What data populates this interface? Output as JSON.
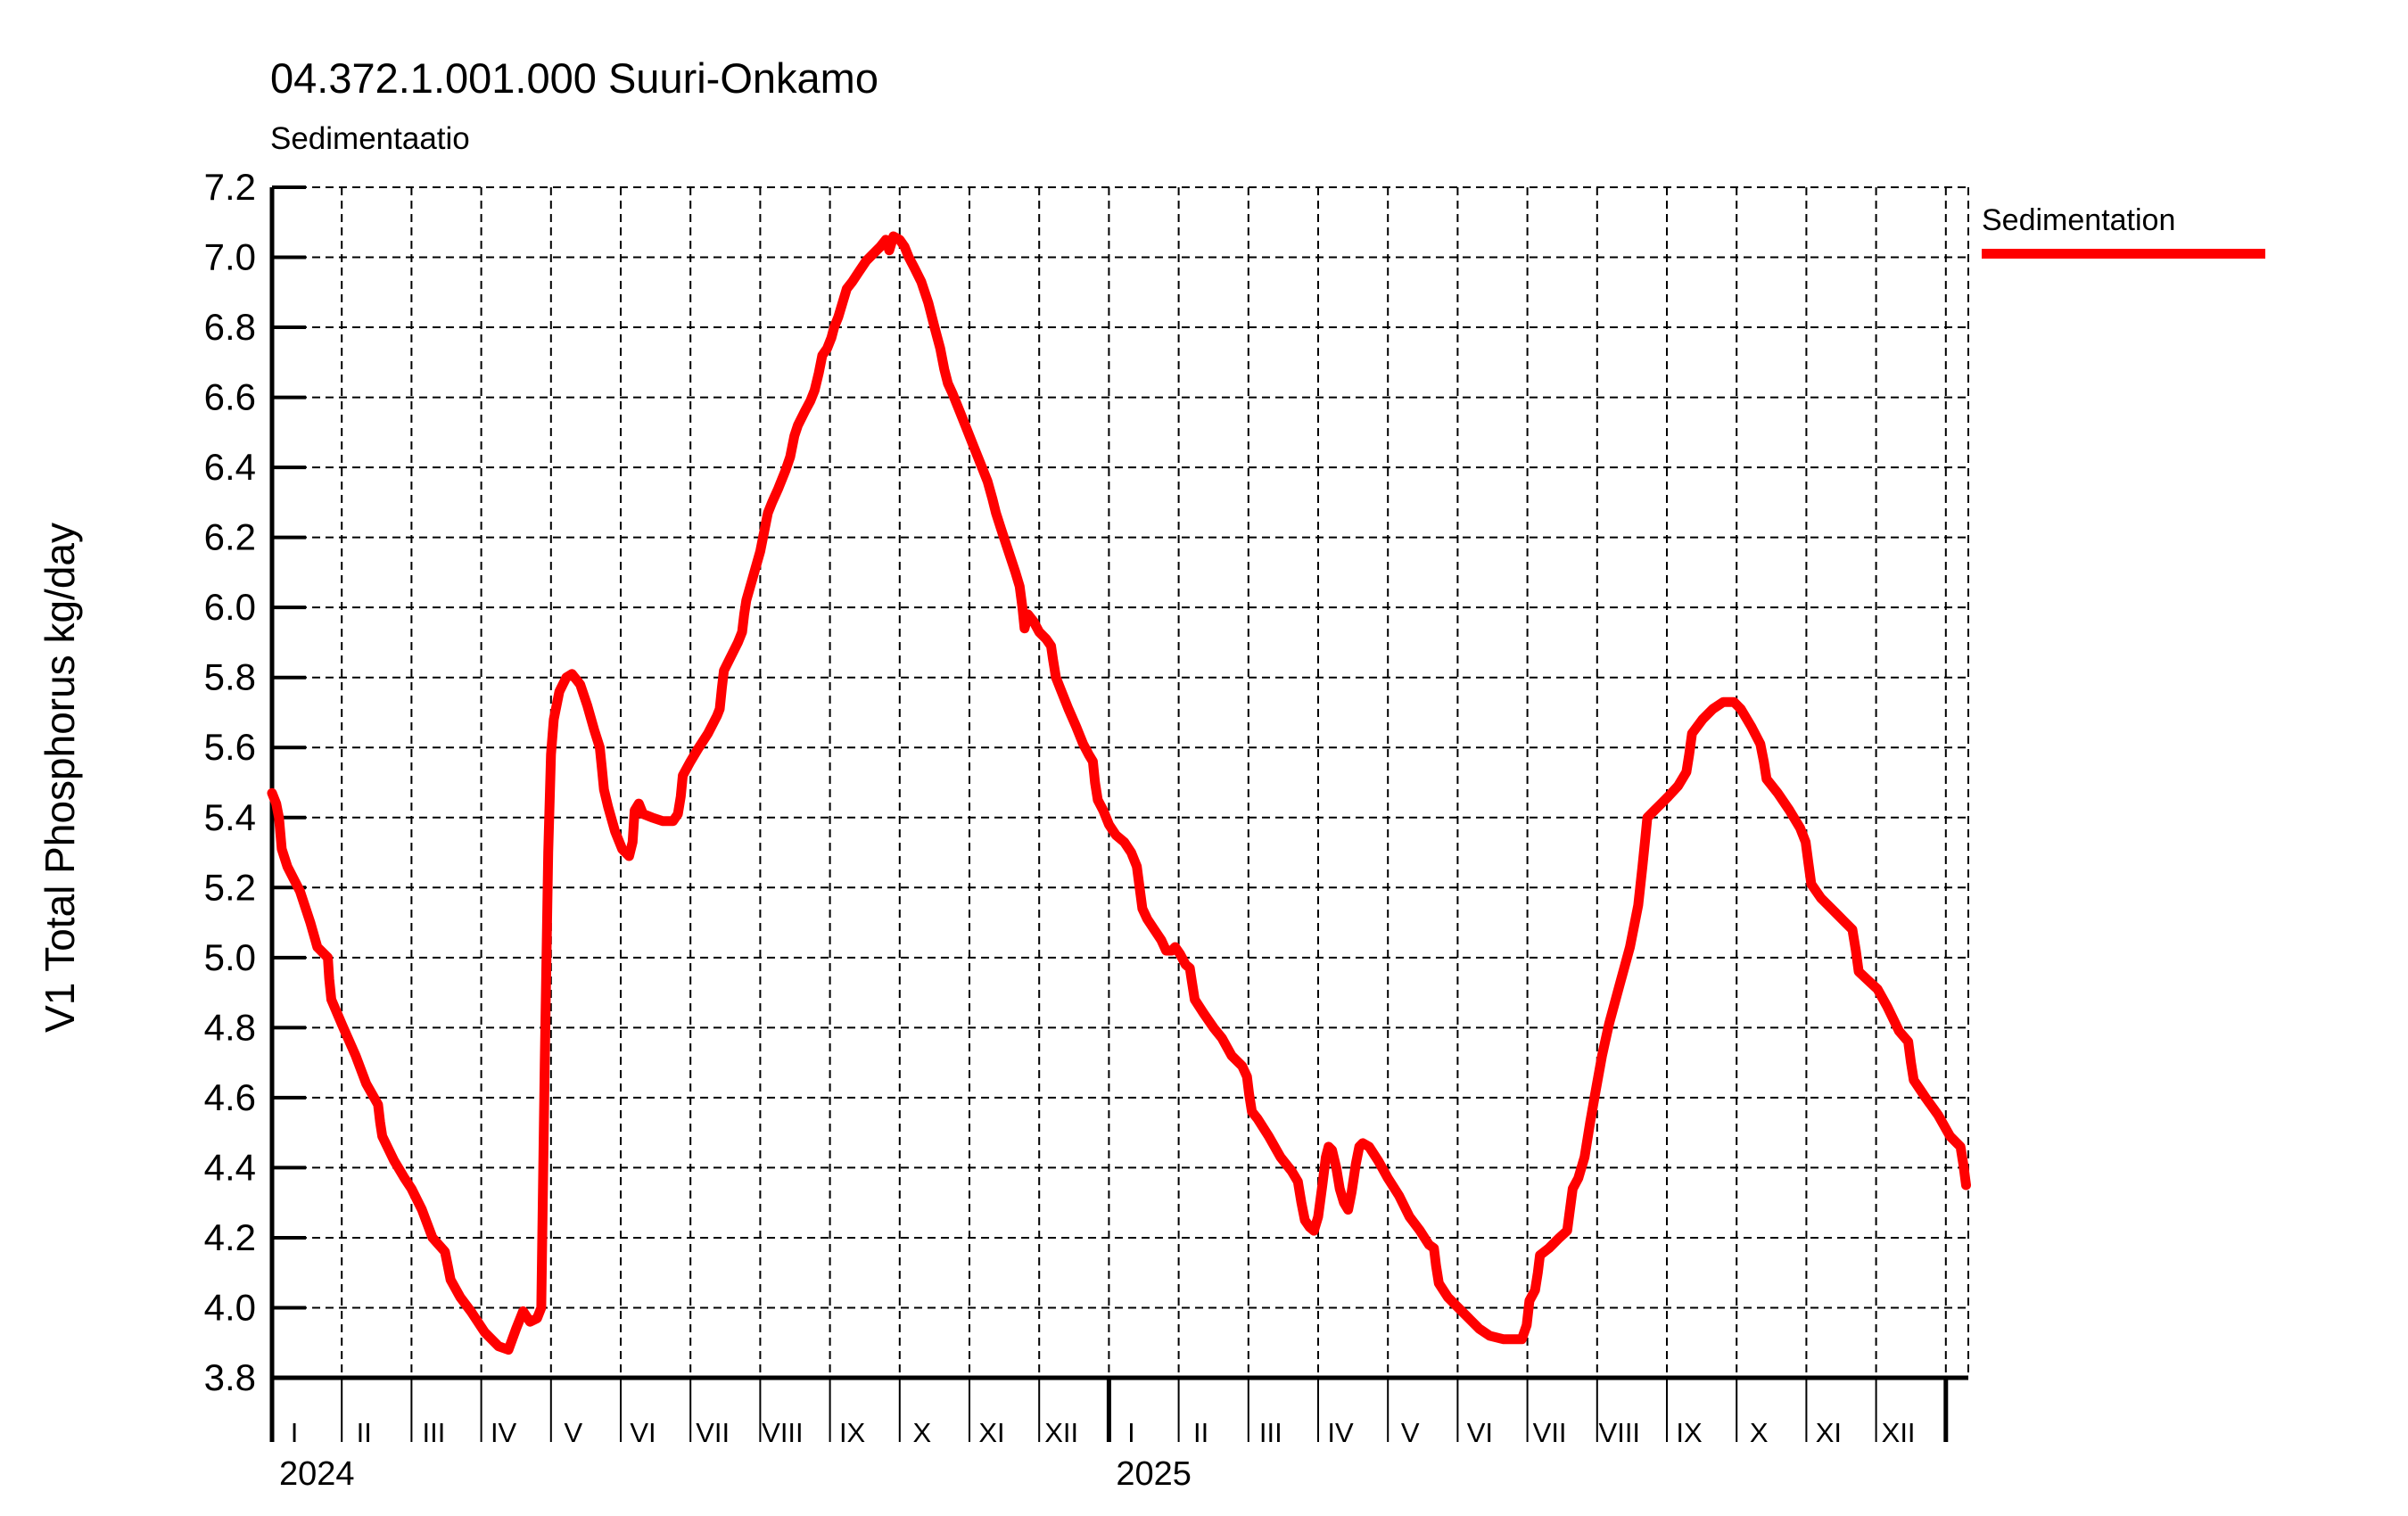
{
  "header": {
    "title": "04.372.1.001.000 Suuri-Onkamo",
    "subtitle": "Sedimentaatio"
  },
  "legend": {
    "label": "Sedimentation",
    "color": "#ff0000",
    "position": "right-top"
  },
  "y_axis": {
    "tick_labels": [
      "3.8",
      "4.0",
      "4.2",
      "4.4",
      "4.6",
      "4.8",
      "5.0",
      "5.2",
      "5.4",
      "5.6",
      "5.8",
      "6.0",
      "6.2",
      "6.4",
      "6.6",
      "6.8",
      "7.0",
      "7.2"
    ]
  },
  "x_axis": {
    "month_labels": [
      "I",
      "II",
      "III",
      "IV",
      "V",
      "VI",
      "VII",
      "VIII",
      "IX",
      "X",
      "XI",
      "XII"
    ],
    "year_labels": [
      "2024",
      "2025"
    ]
  },
  "chart_data": {
    "type": "line",
    "title": "04.372.1.001.000 Suuri-Onkamo",
    "subtitle": "Sedimentaatio",
    "xlabel": "",
    "ylabel": "V1 Total Phosphorus kg/day",
    "ylim": [
      3.8,
      7.2
    ],
    "y_step": 0.2,
    "x_domain_months": 24,
    "x_start": "2024-01",
    "x_end": "2025-12",
    "grid": "dashed",
    "line_color": "#ff0000",
    "line_width": 11,
    "series": [
      {
        "name": "Sedimentation",
        "x_unit": "months_since_2024_01",
        "points": [
          [
            0.0,
            5.47
          ],
          [
            0.06,
            5.44
          ],
          [
            0.1,
            5.4
          ],
          [
            0.14,
            5.31
          ],
          [
            0.22,
            5.26
          ],
          [
            0.4,
            5.19
          ],
          [
            0.55,
            5.1
          ],
          [
            0.65,
            5.03
          ],
          [
            0.8,
            5.0
          ],
          [
            0.82,
            4.94
          ],
          [
            0.85,
            4.88
          ],
          [
            1.0,
            4.81
          ],
          [
            1.2,
            4.72
          ],
          [
            1.35,
            4.64
          ],
          [
            1.52,
            4.58
          ],
          [
            1.55,
            4.53
          ],
          [
            1.58,
            4.49
          ],
          [
            1.75,
            4.42
          ],
          [
            1.9,
            4.37
          ],
          [
            2.0,
            4.34
          ],
          [
            2.15,
            4.28
          ],
          [
            2.3,
            4.2
          ],
          [
            2.48,
            4.16
          ],
          [
            2.52,
            4.12
          ],
          [
            2.56,
            4.08
          ],
          [
            2.7,
            4.03
          ],
          [
            2.85,
            3.99
          ],
          [
            3.05,
            3.93
          ],
          [
            3.25,
            3.89
          ],
          [
            3.39,
            3.88
          ],
          [
            3.5,
            3.94
          ],
          [
            3.6,
            3.99
          ],
          [
            3.7,
            3.96
          ],
          [
            3.8,
            3.97
          ],
          [
            3.86,
            4.0
          ],
          [
            3.91,
            4.7
          ],
          [
            3.96,
            5.3
          ],
          [
            4.0,
            5.58
          ],
          [
            4.04,
            5.68
          ],
          [
            4.12,
            5.76
          ],
          [
            4.22,
            5.8
          ],
          [
            4.3,
            5.81
          ],
          [
            4.42,
            5.78
          ],
          [
            4.52,
            5.72
          ],
          [
            4.62,
            5.65
          ],
          [
            4.7,
            5.6
          ],
          [
            4.73,
            5.54
          ],
          [
            4.76,
            5.48
          ],
          [
            4.82,
            5.43
          ],
          [
            4.92,
            5.36
          ],
          [
            5.02,
            5.31
          ],
          [
            5.12,
            5.29
          ],
          [
            5.17,
            5.33
          ],
          [
            5.2,
            5.42
          ],
          [
            5.26,
            5.44
          ],
          [
            5.32,
            5.41
          ],
          [
            5.45,
            5.4
          ],
          [
            5.6,
            5.39
          ],
          [
            5.75,
            5.39
          ],
          [
            5.82,
            5.41
          ],
          [
            5.86,
            5.46
          ],
          [
            5.89,
            5.52
          ],
          [
            6.0,
            5.56
          ],
          [
            6.12,
            5.6
          ],
          [
            6.25,
            5.64
          ],
          [
            6.38,
            5.69
          ],
          [
            6.42,
            5.71
          ],
          [
            6.45,
            5.77
          ],
          [
            6.48,
            5.82
          ],
          [
            6.58,
            5.86
          ],
          [
            6.68,
            5.9
          ],
          [
            6.74,
            5.93
          ],
          [
            6.77,
            5.98
          ],
          [
            6.8,
            6.02
          ],
          [
            6.9,
            6.09
          ],
          [
            7.0,
            6.16
          ],
          [
            7.06,
            6.22
          ],
          [
            7.11,
            6.27
          ],
          [
            7.17,
            6.3
          ],
          [
            7.26,
            6.34
          ],
          [
            7.36,
            6.39
          ],
          [
            7.43,
            6.43
          ],
          [
            7.49,
            6.49
          ],
          [
            7.54,
            6.52
          ],
          [
            7.64,
            6.56
          ],
          [
            7.72,
            6.59
          ],
          [
            7.78,
            6.62
          ],
          [
            7.84,
            6.67
          ],
          [
            7.89,
            6.72
          ],
          [
            7.96,
            6.74
          ],
          [
            8.02,
            6.77
          ],
          [
            8.06,
            6.8
          ],
          [
            8.12,
            6.83
          ],
          [
            8.18,
            6.87
          ],
          [
            8.24,
            6.91
          ],
          [
            8.32,
            6.93
          ],
          [
            8.42,
            6.96
          ],
          [
            8.52,
            6.99
          ],
          [
            8.62,
            7.01
          ],
          [
            8.72,
            7.03
          ],
          [
            8.8,
            7.05
          ],
          [
            8.85,
            7.02
          ],
          [
            8.91,
            7.06
          ],
          [
            9.0,
            7.05
          ],
          [
            9.07,
            7.03
          ],
          [
            9.13,
            7.0
          ],
          [
            9.21,
            6.97
          ],
          [
            9.31,
            6.93
          ],
          [
            9.41,
            6.87
          ],
          [
            9.5,
            6.8
          ],
          [
            9.58,
            6.74
          ],
          [
            9.64,
            6.68
          ],
          [
            9.69,
            6.64
          ],
          [
            9.76,
            6.61
          ],
          [
            9.86,
            6.56
          ],
          [
            9.96,
            6.51
          ],
          [
            10.06,
            6.46
          ],
          [
            10.16,
            6.41
          ],
          [
            10.26,
            6.36
          ],
          [
            10.33,
            6.31
          ],
          [
            10.38,
            6.27
          ],
          [
            10.46,
            6.22
          ],
          [
            10.56,
            6.16
          ],
          [
            10.66,
            6.1
          ],
          [
            10.72,
            6.06
          ],
          [
            10.76,
            6.0
          ],
          [
            10.79,
            5.94
          ],
          [
            10.84,
            5.98
          ],
          [
            10.92,
            5.96
          ],
          [
            11.0,
            5.93
          ],
          [
            11.1,
            5.91
          ],
          [
            11.17,
            5.89
          ],
          [
            11.2,
            5.85
          ],
          [
            11.24,
            5.8
          ],
          [
            11.32,
            5.76
          ],
          [
            11.42,
            5.71
          ],
          [
            11.53,
            5.66
          ],
          [
            11.63,
            5.61
          ],
          [
            11.71,
            5.58
          ],
          [
            11.77,
            5.56
          ],
          [
            11.8,
            5.5
          ],
          [
            11.84,
            5.45
          ],
          [
            11.92,
            5.42
          ],
          [
            12.0,
            5.38
          ],
          [
            12.1,
            5.35
          ],
          [
            12.22,
            5.33
          ],
          [
            12.32,
            5.3
          ],
          [
            12.4,
            5.26
          ],
          [
            12.44,
            5.2
          ],
          [
            12.48,
            5.14
          ],
          [
            12.55,
            5.11
          ],
          [
            12.65,
            5.08
          ],
          [
            12.75,
            5.05
          ],
          [
            12.82,
            5.02
          ],
          [
            12.9,
            5.02
          ],
          [
            12.95,
            5.03
          ],
          [
            13.02,
            5.01
          ],
          [
            13.1,
            4.98
          ],
          [
            13.16,
            4.97
          ],
          [
            13.19,
            4.93
          ],
          [
            13.23,
            4.88
          ],
          [
            13.36,
            4.84
          ],
          [
            13.5,
            4.8
          ],
          [
            13.62,
            4.77
          ],
          [
            13.76,
            4.72
          ],
          [
            13.91,
            4.69
          ],
          [
            13.98,
            4.66
          ],
          [
            14.01,
            4.61
          ],
          [
            14.05,
            4.56
          ],
          [
            14.13,
            4.54
          ],
          [
            14.29,
            4.49
          ],
          [
            14.46,
            4.43
          ],
          [
            14.62,
            4.39
          ],
          [
            14.71,
            4.36
          ],
          [
            14.76,
            4.3
          ],
          [
            14.81,
            4.25
          ],
          [
            14.88,
            4.23
          ],
          [
            14.94,
            4.22
          ],
          [
            15.0,
            4.26
          ],
          [
            15.06,
            4.35
          ],
          [
            15.11,
            4.43
          ],
          [
            15.15,
            4.46
          ],
          [
            15.2,
            4.45
          ],
          [
            15.26,
            4.4
          ],
          [
            15.31,
            4.34
          ],
          [
            15.37,
            4.3
          ],
          [
            15.43,
            4.28
          ],
          [
            15.48,
            4.33
          ],
          [
            15.54,
            4.41
          ],
          [
            15.59,
            4.46
          ],
          [
            15.64,
            4.47
          ],
          [
            15.73,
            4.46
          ],
          [
            15.86,
            4.42
          ],
          [
            16.0,
            4.37
          ],
          [
            16.16,
            4.32
          ],
          [
            16.31,
            4.26
          ],
          [
            16.46,
            4.22
          ],
          [
            16.59,
            4.18
          ],
          [
            16.66,
            4.17
          ],
          [
            16.69,
            4.12
          ],
          [
            16.73,
            4.07
          ],
          [
            16.86,
            4.03
          ],
          [
            17.01,
            4.0
          ],
          [
            17.16,
            3.97
          ],
          [
            17.31,
            3.94
          ],
          [
            17.46,
            3.92
          ],
          [
            17.66,
            3.91
          ],
          [
            17.92,
            3.91
          ],
          [
            17.99,
            3.95
          ],
          [
            18.03,
            4.02
          ],
          [
            18.11,
            4.05
          ],
          [
            18.15,
            4.1
          ],
          [
            18.18,
            4.15
          ],
          [
            18.31,
            4.17
          ],
          [
            18.46,
            4.2
          ],
          [
            18.57,
            4.22
          ],
          [
            18.61,
            4.28
          ],
          [
            18.65,
            4.34
          ],
          [
            18.73,
            4.37
          ],
          [
            18.82,
            4.43
          ],
          [
            18.9,
            4.53
          ],
          [
            18.97,
            4.61
          ],
          [
            19.07,
            4.72
          ],
          [
            19.17,
            4.81
          ],
          [
            19.32,
            4.92
          ],
          [
            19.47,
            5.03
          ],
          [
            19.59,
            5.15
          ],
          [
            19.65,
            5.26
          ],
          [
            19.69,
            5.34
          ],
          [
            19.72,
            5.4
          ],
          [
            19.82,
            5.42
          ],
          [
            19.92,
            5.44
          ],
          [
            20.02,
            5.46
          ],
          [
            20.16,
            5.49
          ],
          [
            20.28,
            5.53
          ],
          [
            20.32,
            5.58
          ],
          [
            20.36,
            5.64
          ],
          [
            20.51,
            5.68
          ],
          [
            20.66,
            5.71
          ],
          [
            20.81,
            5.73
          ],
          [
            20.96,
            5.73
          ],
          [
            21.06,
            5.71
          ],
          [
            21.21,
            5.66
          ],
          [
            21.34,
            5.61
          ],
          [
            21.39,
            5.56
          ],
          [
            21.43,
            5.51
          ],
          [
            21.59,
            5.47
          ],
          [
            21.76,
            5.42
          ],
          [
            21.91,
            5.37
          ],
          [
            21.99,
            5.33
          ],
          [
            22.03,
            5.27
          ],
          [
            22.07,
            5.21
          ],
          [
            22.21,
            5.17
          ],
          [
            22.41,
            5.13
          ],
          [
            22.56,
            5.1
          ],
          [
            22.66,
            5.08
          ],
          [
            22.71,
            5.02
          ],
          [
            22.75,
            4.96
          ],
          [
            22.91,
            4.93
          ],
          [
            23.02,
            4.91
          ],
          [
            23.16,
            4.86
          ],
          [
            23.33,
            4.79
          ],
          [
            23.46,
            4.76
          ],
          [
            23.5,
            4.7
          ],
          [
            23.54,
            4.65
          ],
          [
            23.71,
            4.6
          ],
          [
            23.89,
            4.55
          ],
          [
            24.06,
            4.49
          ],
          [
            24.21,
            4.46
          ],
          [
            24.25,
            4.41
          ],
          [
            24.29,
            4.35
          ]
        ]
      }
    ]
  }
}
